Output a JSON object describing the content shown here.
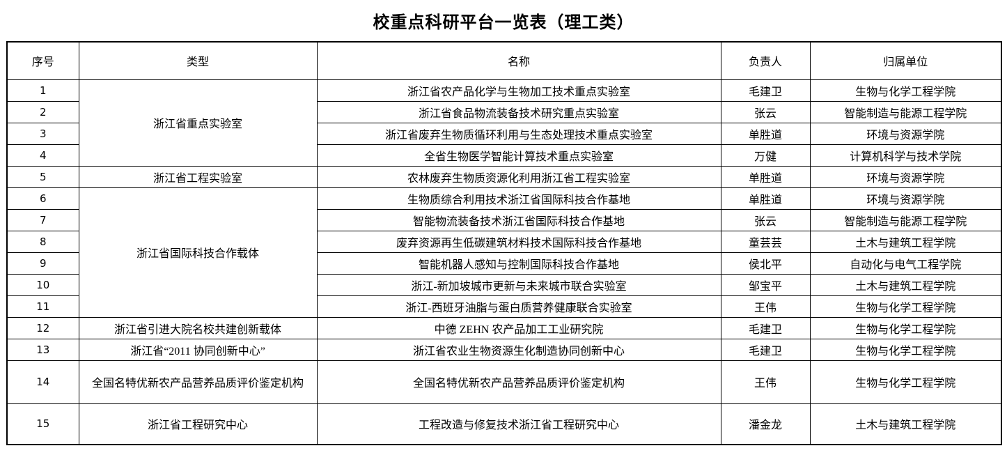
{
  "page": {
    "title": "校重点科研平台一览表（理工类）"
  },
  "table": {
    "headers": {
      "no": "序号",
      "type": "类型",
      "name": "名称",
      "leader": "负责人",
      "unit": "归属单位"
    },
    "type_groups": [
      {
        "label": "浙江省重点实验室",
        "span": 4
      },
      {
        "label": "浙江省工程实验室",
        "span": 1
      },
      {
        "label": "浙江省国际科技合作载体",
        "span": 6
      },
      {
        "label": "浙江省引进大院名校共建创新载体",
        "span": 1
      },
      {
        "label": "浙江省“2011 协同创新中心”",
        "span": 1
      },
      {
        "label": "全国名特优新农产品营养品质评价鉴定机构",
        "span": 1
      },
      {
        "label": "浙江省工程研究中心",
        "span": 1
      }
    ],
    "rows": [
      {
        "no": "1",
        "name": "浙江省农产品化学与生物加工技术重点实验室",
        "leader": "毛建卫",
        "unit": "生物与化学工程学院"
      },
      {
        "no": "2",
        "name": "浙江省食品物流装备技术研究重点实验室",
        "leader": "张云",
        "unit": "智能制造与能源工程学院"
      },
      {
        "no": "3",
        "name": "浙江省废弃生物质循环利用与生态处理技术重点实验室",
        "leader": "单胜道",
        "unit": "环境与资源学院"
      },
      {
        "no": "4",
        "name": "全省生物医学智能计算技术重点实验室",
        "leader": "万健",
        "unit": "计算机科学与技术学院"
      },
      {
        "no": "5",
        "name": "农林废弃生物质资源化利用浙江省工程实验室",
        "leader": "单胜道",
        "unit": "环境与资源学院"
      },
      {
        "no": "6",
        "name": "生物质综合利用技术浙江省国际科技合作基地",
        "leader": "单胜道",
        "unit": "环境与资源学院"
      },
      {
        "no": "7",
        "name": "智能物流装备技术浙江省国际科技合作基地",
        "leader": "张云",
        "unit": "智能制造与能源工程学院"
      },
      {
        "no": "8",
        "name": "废弃资源再生低碳建筑材料技术国际科技合作基地",
        "leader": "童芸芸",
        "unit": "土木与建筑工程学院"
      },
      {
        "no": "9",
        "name": "智能机器人感知与控制国际科技合作基地",
        "leader": "侯北平",
        "unit": "自动化与电气工程学院"
      },
      {
        "no": "10",
        "name": "浙江-新加坡城市更新与未来城市联合实验室",
        "leader": "邹宝平",
        "unit": "土木与建筑工程学院"
      },
      {
        "no": "11",
        "name": "浙江-西班牙油脂与蛋白质营养健康联合实验室",
        "leader": "王伟",
        "unit": "生物与化学工程学院"
      },
      {
        "no": "12",
        "name": "中德 ZEHN 农产品加工工业研究院",
        "leader": "毛建卫",
        "unit": "生物与化学工程学院"
      },
      {
        "no": "13",
        "name": "浙江省农业生物资源生化制造协同创新中心",
        "leader": "毛建卫",
        "unit": "生物与化学工程学院"
      },
      {
        "no": "14",
        "name": "全国名特优新农产品营养品质评价鉴定机构",
        "leader": "王伟",
        "unit": "生物与化学工程学院"
      },
      {
        "no": "15",
        "name": "工程改造与修复技术浙江省工程研究中心",
        "leader": "潘金龙",
        "unit": "土木与建筑工程学院"
      }
    ]
  }
}
